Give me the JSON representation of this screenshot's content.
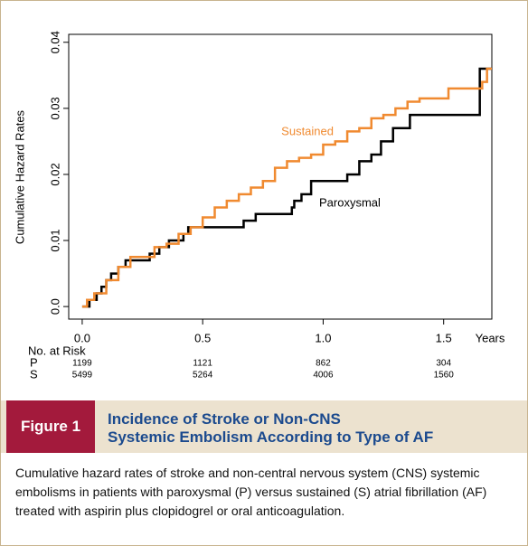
{
  "chart_data": {
    "type": "line",
    "step": true,
    "ylabel": "Cumulative Hazard Rates",
    "xlabel": "Years",
    "xlim": [
      -0.056,
      1.7
    ],
    "ylim": [
      -0.0019,
      0.0412
    ],
    "xticks": [
      {
        "value": 0,
        "label": "0.0"
      },
      0.5,
      {
        "value": 1,
        "label": "1.0"
      },
      1.5
    ],
    "yticks": [
      {
        "value": 0,
        "label": "0.0"
      },
      0.01,
      0.02,
      0.03,
      0.04
    ],
    "series": [
      {
        "name": "Paroxysmal",
        "color": "#000000",
        "x": [
          0,
          0.03,
          0.06,
          0.08,
          0.1,
          0.12,
          0.15,
          0.18,
          0.28,
          0.32,
          0.36,
          0.42,
          0.44,
          0.67,
          0.72,
          0.87,
          0.88,
          0.91,
          0.95,
          1.1,
          1.15,
          1.2,
          1.24,
          1.29,
          1.36,
          1.65,
          1.7
        ],
        "values": [
          0,
          0.001,
          0.002,
          0.003,
          0.004,
          0.005,
          0.006,
          0.007,
          0.008,
          0.009,
          0.01,
          0.011,
          0.012,
          0.013,
          0.014,
          0.015,
          0.016,
          0.017,
          0.019,
          0.02,
          0.022,
          0.023,
          0.025,
          0.027,
          0.029,
          0.036,
          0.036
        ]
      },
      {
        "name": "Sustained",
        "color": "#f08a30",
        "x": [
          0,
          0.02,
          0.05,
          0.1,
          0.15,
          0.2,
          0.3,
          0.35,
          0.4,
          0.45,
          0.5,
          0.55,
          0.6,
          0.65,
          0.7,
          0.75,
          0.8,
          0.85,
          0.9,
          0.95,
          1.0,
          1.05,
          1.1,
          1.15,
          1.2,
          1.25,
          1.3,
          1.35,
          1.4,
          1.52,
          1.66,
          1.68,
          1.7
        ],
        "values": [
          0,
          0.001,
          0.002,
          0.004,
          0.006,
          0.0075,
          0.009,
          0.0095,
          0.011,
          0.012,
          0.0135,
          0.015,
          0.016,
          0.017,
          0.018,
          0.019,
          0.021,
          0.022,
          0.0225,
          0.023,
          0.0245,
          0.025,
          0.0265,
          0.027,
          0.0285,
          0.029,
          0.03,
          0.031,
          0.0315,
          0.033,
          0.034,
          0.036,
          0.036
        ]
      }
    ],
    "risk_table": {
      "title": "No. at Risk",
      "rows": [
        {
          "label": "P",
          "values": [
            1199,
            1121,
            862,
            304
          ]
        },
        {
          "label": "S",
          "values": [
            5499,
            5264,
            4006,
            1560
          ]
        }
      ]
    }
  },
  "figure": {
    "label": "Figure 1",
    "title": [
      "Incidence of Stroke or Non-CNS",
      "Systemic Embolism According to Type of AF"
    ],
    "caption": "Cumulative hazard rates of stroke and non-central nervous system (CNS) systemic embolisms in patients with paroxysmal (P) versus sustained (S) atrial fibrillation (AF) treated with aspirin plus clopidogrel or oral anticoagulation."
  }
}
